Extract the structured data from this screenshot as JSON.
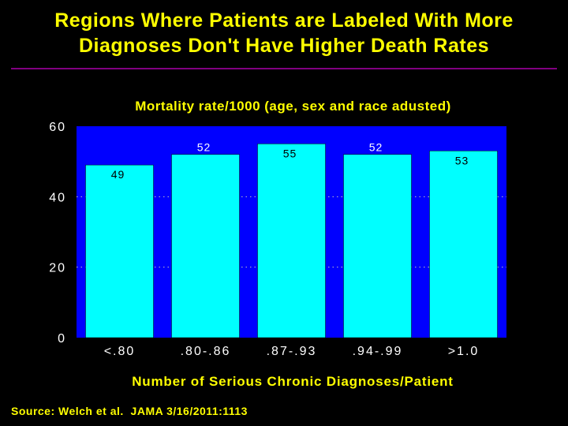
{
  "slide": {
    "title_line1": "Regions Where Patients are Labeled With More",
    "title_line2": "Diagnoses Don't Have Higher Death Rates",
    "source": "Source: Welch et al.  JAMA 3/16/2011:1113"
  },
  "colors": {
    "background": "#000000",
    "title": "#FFFF00",
    "rule": "#800080",
    "plot_background": "#0000FF",
    "bar": "#00FFFF",
    "axis_text": "#FFFFFF"
  },
  "chart_data": {
    "type": "bar",
    "title": "Mortality rate/1000 (age, sex and race adusted)",
    "xlabel": "Number of Serious Chronic Diagnoses/Patient",
    "ylabel": "",
    "categories": [
      "<.80",
      ".80-.86",
      ".87-.93",
      ".94-.99",
      ">1.0"
    ],
    "values": [
      49,
      52,
      55,
      52,
      53
    ],
    "ylim": [
      0,
      60
    ],
    "yticks": [
      "0",
      "20",
      "40",
      "60"
    ],
    "grid": "dotted horizontal at 20 and 40"
  }
}
